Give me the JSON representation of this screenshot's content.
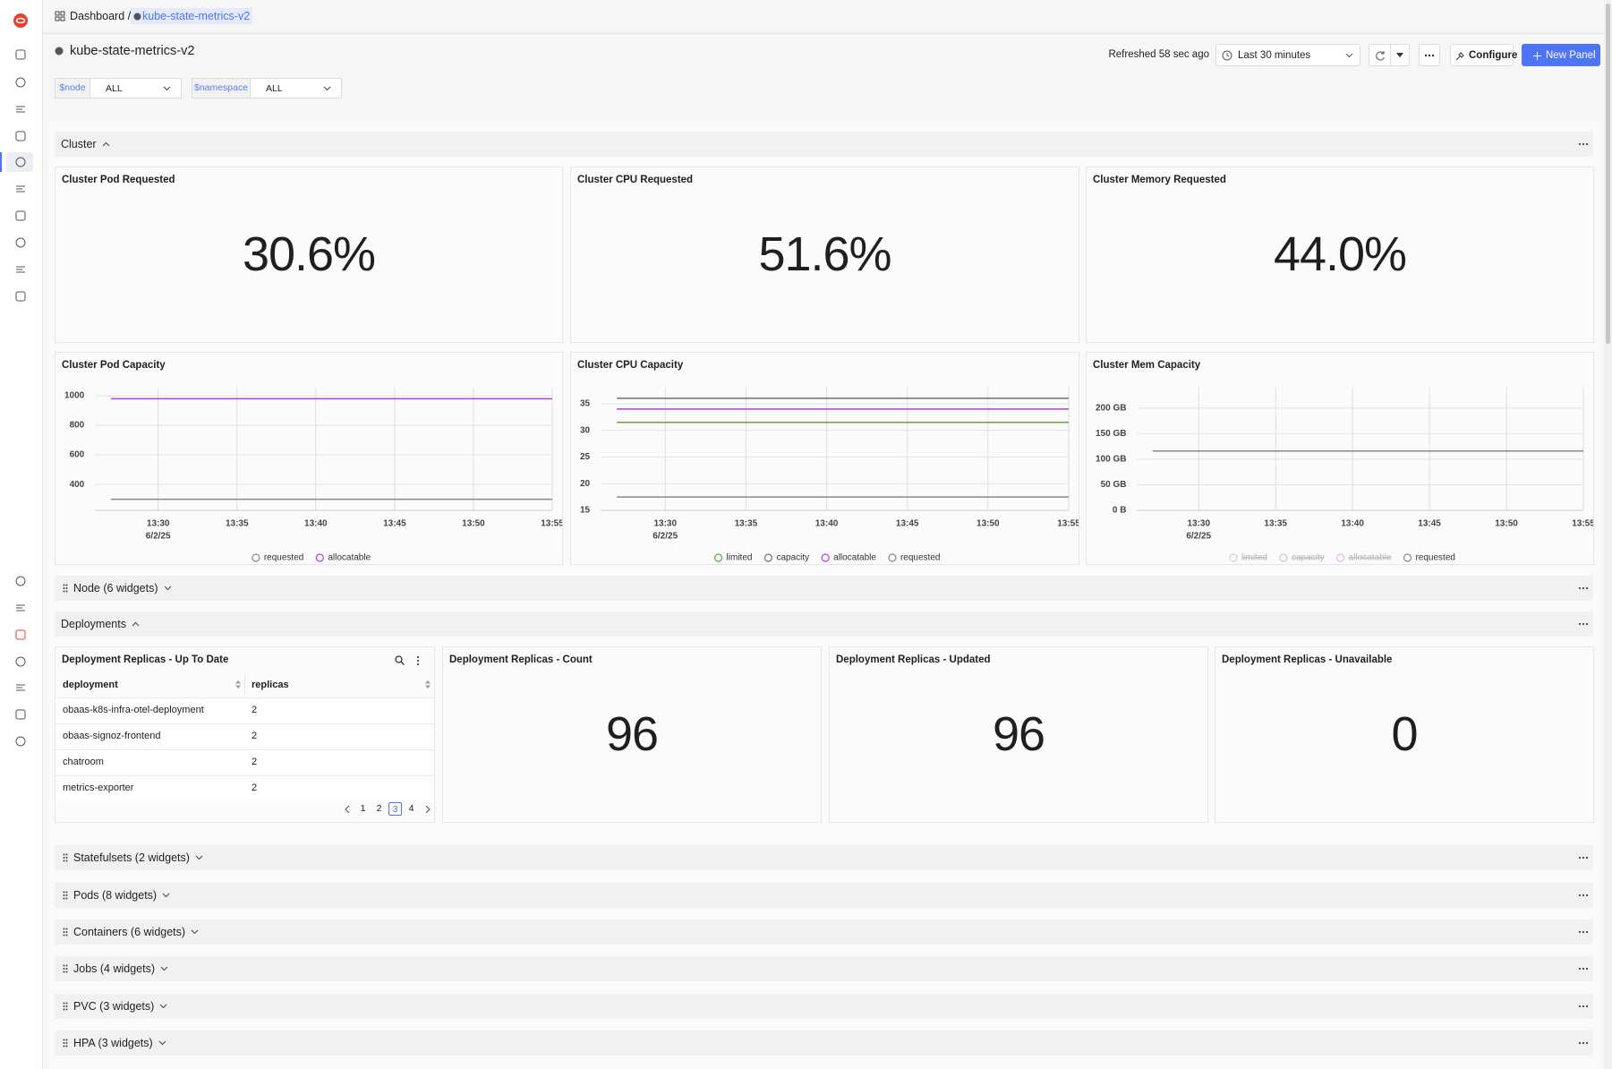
{
  "breadcrumb": {
    "root": "Dashboard /",
    "current": "kube-state-metrics-v2"
  },
  "header": {
    "title": "kube-state-metrics-v2",
    "refreshed": "Refreshed 58 sec ago",
    "time_range": "Last 30 minutes",
    "configure": "Configure",
    "new_panel": "New Panel"
  },
  "variables": [
    {
      "name": "$node",
      "value": "ALL"
    },
    {
      "name": "$namespace",
      "value": "ALL"
    }
  ],
  "cluster": {
    "title": "Cluster",
    "stats": [
      {
        "title": "Cluster Pod Requested",
        "value": "30.6%"
      },
      {
        "title": "Cluster CPU Requested",
        "value": "51.6%"
      },
      {
        "title": "Cluster Memory Requested",
        "value": "44.0%"
      }
    ],
    "charts": [
      {
        "type": "line",
        "title": "Cluster Pod Capacity",
        "x": [
          "13:27",
          "13:55"
        ],
        "xlim": [
          "13:26",
          "13:55"
        ],
        "xticks": [
          "13:30",
          "13:35",
          "13:40",
          "13:45",
          "13:50",
          "13:55"
        ],
        "xdate": "6/2/25",
        "ylim": [
          225,
          1055
        ],
        "yticks": [
          400,
          600,
          800,
          1000
        ],
        "grid": true,
        "series": [
          {
            "name": "requested",
            "color": "#8a8a8a",
            "values": [
              300,
              300
            ]
          },
          {
            "name": "allocatable",
            "color": "#b43fd9",
            "values": [
              980,
              980
            ]
          }
        ]
      },
      {
        "type": "line",
        "title": "Cluster CPU Capacity",
        "x": [
          "13:27",
          "13:55"
        ],
        "xlim": [
          "13:26",
          "13:55"
        ],
        "xticks": [
          "13:30",
          "13:35",
          "13:40",
          "13:45",
          "13:50",
          "13:55"
        ],
        "xdate": "6/2/25",
        "ylim": [
          15,
          38
        ],
        "yticks": [
          15,
          20,
          25,
          30,
          35
        ],
        "grid": true,
        "series": [
          {
            "name": "limited",
            "color": "#5fa83a",
            "values": [
              31.5,
              31.5
            ]
          },
          {
            "name": "capacity",
            "color": "#6e6e6e",
            "values": [
              36,
              36
            ]
          },
          {
            "name": "allocatable",
            "color": "#b43fd9",
            "values": [
              34,
              34
            ]
          },
          {
            "name": "requested",
            "color": "#8a8a8a",
            "values": [
              17.5,
              17.5
            ]
          }
        ]
      },
      {
        "type": "line",
        "title": "Cluster Mem Capacity",
        "x": [
          "13:27",
          "13:55"
        ],
        "xlim": [
          "13:26",
          "13:55"
        ],
        "xticks": [
          "13:30",
          "13:35",
          "13:40",
          "13:45",
          "13:50",
          "13:55"
        ],
        "xdate": "6/2/25",
        "ylim": [
          0,
          240
        ],
        "yticks": [
          {
            "value": 0,
            "label": "0 B"
          },
          {
            "value": 50,
            "label": "50 GB"
          },
          {
            "value": 100,
            "label": "100 GB"
          },
          {
            "value": 150,
            "label": "150 GB"
          },
          {
            "value": 200,
            "label": "200 GB"
          }
        ],
        "grid": true,
        "series": [
          {
            "name": "limited",
            "color": "#5fa83a",
            "hidden": true,
            "values": [
              null,
              null
            ]
          },
          {
            "name": "capacity",
            "color": "#6e6e6e",
            "hidden": true,
            "values": [
              null,
              null
            ]
          },
          {
            "name": "allocatable",
            "color": "#b43fd9",
            "hidden": true,
            "values": [
              null,
              null
            ]
          },
          {
            "name": "requested",
            "color": "#8a8a8a",
            "values": [
              116,
              116
            ]
          }
        ]
      }
    ]
  },
  "node_row": {
    "title": "Node (6 widgets)"
  },
  "deployments": {
    "title": "Deployments",
    "table": {
      "title": "Deployment Replicas - Up To Date",
      "columns": [
        "deployment",
        "replicas"
      ],
      "rows": [
        [
          "obaas-k8s-infra-otel-deployment",
          "2"
        ],
        [
          "obaas-signoz-frontend",
          "2"
        ],
        [
          "chatroom",
          "2"
        ],
        [
          "metrics-exporter",
          "2"
        ]
      ],
      "pages": [
        {
          "label": "1"
        },
        {
          "label": "2"
        },
        {
          "label": "3",
          "active": true
        },
        {
          "label": "4"
        }
      ]
    },
    "stats": [
      {
        "title": "Deployment Replicas - Count",
        "value": "96"
      },
      {
        "title": "Deployment Replicas - Updated",
        "value": "96"
      },
      {
        "title": "Deployment Replicas - Unavailable",
        "value": "0"
      }
    ]
  },
  "collapsed_rows": [
    "Statefulsets (2 widgets)",
    "Pods (8 widgets)",
    "Containers (6 widgets)",
    "Jobs (4 widgets)",
    "PVC (3 widgets)",
    "HPA (3 widgets)"
  ]
}
